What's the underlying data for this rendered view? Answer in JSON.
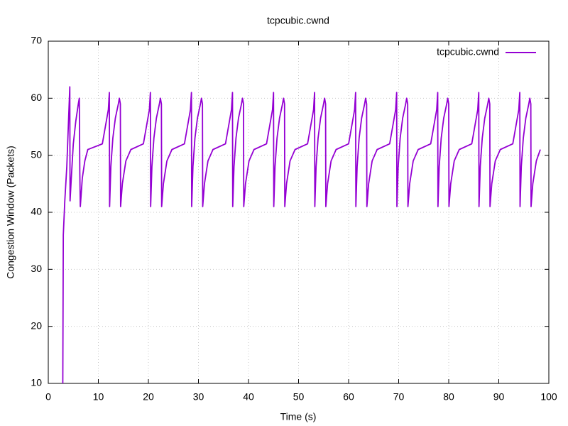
{
  "chart_data": {
    "type": "line",
    "title": "tcpcubic.cwnd",
    "x_label": "Time (s)",
    "y_label": "Congestion Window (Packets)",
    "xlim": [
      0,
      100
    ],
    "xticks": [
      0,
      10,
      20,
      30,
      40,
      50,
      60,
      70,
      80,
      90,
      100
    ],
    "ylim": [
      10,
      70
    ],
    "yticks": [
      10,
      20,
      30,
      40,
      50,
      60,
      70
    ],
    "grid": true,
    "legend": "top-right",
    "x": [
      2.9,
      3.0,
      3.3,
      3.7,
      4.0,
      4.3,
      4.35,
      4.6,
      5.0,
      5.5,
      6.0,
      6.2,
      6.3,
      6.4,
      6.8,
      7.3,
      7.9,
      10.8,
      11.4,
      12.0,
      12.2,
      12.25,
      12.5,
      12.9,
      13.4,
      14.0,
      14.2,
      14.4,
      14.45,
      14.8,
      15.5,
      16.5,
      19.0,
      19.6,
      20.2,
      20.4,
      20.45,
      20.7,
      21.1,
      21.6,
      22.2,
      22.4,
      22.6,
      22.65,
      23.0,
      23.7,
      24.7,
      27.2,
      27.8,
      28.4,
      28.6,
      28.65,
      28.9,
      29.3,
      29.8,
      30.4,
      30.6,
      30.8,
      30.85,
      31.2,
      31.9,
      32.9,
      35.4,
      36.0,
      36.6,
      36.8,
      36.85,
      37.1,
      37.5,
      38.0,
      38.6,
      38.8,
      39.0,
      39.05,
      39.4,
      40.1,
      41.1,
      43.6,
      44.2,
      44.8,
      45.0,
      45.05,
      45.3,
      45.7,
      46.2,
      46.8,
      47.0,
      47.2,
      47.25,
      47.6,
      48.3,
      49.3,
      51.8,
      52.4,
      53.0,
      53.2,
      53.25,
      53.5,
      53.9,
      54.4,
      55.0,
      55.2,
      55.4,
      55.45,
      55.8,
      56.5,
      57.5,
      60.0,
      60.6,
      61.2,
      61.4,
      61.45,
      61.7,
      62.1,
      62.6,
      63.2,
      63.4,
      63.6,
      63.65,
      64.0,
      64.7,
      65.7,
      68.2,
      68.8,
      69.4,
      69.6,
      69.65,
      69.9,
      70.3,
      70.8,
      71.4,
      71.6,
      71.8,
      71.85,
      72.2,
      72.9,
      73.9,
      76.4,
      77.0,
      77.6,
      77.8,
      77.85,
      78.1,
      78.5,
      79.0,
      79.6,
      79.8,
      80.0,
      80.05,
      80.4,
      81.1,
      82.1,
      84.6,
      85.2,
      85.8,
      86.0,
      86.05,
      86.3,
      86.7,
      87.2,
      87.8,
      88.0,
      88.2,
      88.25,
      88.6,
      89.3,
      90.3,
      92.8,
      93.4,
      94.0,
      94.2,
      94.25,
      94.5,
      94.9,
      95.4,
      96.0,
      96.2,
      96.4,
      96.45,
      96.8,
      97.5,
      98.3
    ],
    "series": [
      {
        "name": "tcpcubic.cwnd",
        "color": "#9400d3",
        "values": [
          10,
          36,
          42,
          48,
          55,
          62,
          42,
          46,
          52,
          56,
          59,
          60,
          47,
          41,
          46,
          49,
          51,
          52,
          55,
          58,
          61,
          41,
          48,
          53,
          56.5,
          59,
          60,
          59,
          41,
          45,
          49,
          51,
          52,
          55,
          58,
          61,
          41,
          48,
          53,
          56.5,
          59,
          60,
          59,
          41,
          45,
          49,
          51,
          52,
          55,
          58,
          61,
          41,
          48,
          53,
          56.5,
          59,
          60,
          59,
          41,
          45,
          49,
          51,
          52,
          55,
          58,
          61,
          41,
          48,
          53,
          56.5,
          59,
          60,
          59,
          41,
          45,
          49,
          51,
          52,
          55,
          58,
          61,
          41,
          48,
          53,
          56.5,
          59,
          60,
          59,
          41,
          45,
          49,
          51,
          52,
          55,
          58,
          61,
          41,
          48,
          53,
          56.5,
          59,
          60,
          59,
          41,
          45,
          49,
          51,
          52,
          55,
          58,
          61,
          41,
          48,
          53,
          56.5,
          59,
          60,
          59,
          41,
          45,
          49,
          51,
          52,
          55,
          58,
          61,
          41,
          48,
          53,
          56.5,
          59,
          60,
          59,
          41,
          45,
          49,
          51,
          52,
          55,
          58,
          61,
          41,
          48,
          53,
          56.5,
          59,
          60,
          59,
          41,
          45,
          49,
          51,
          52,
          55,
          58,
          61,
          41,
          48,
          53,
          56.5,
          59,
          60,
          59,
          41,
          45,
          49,
          51,
          52,
          55,
          58,
          61,
          41,
          48,
          53,
          56.5,
          59,
          60,
          59,
          41,
          45,
          49,
          51
        ]
      }
    ]
  }
}
